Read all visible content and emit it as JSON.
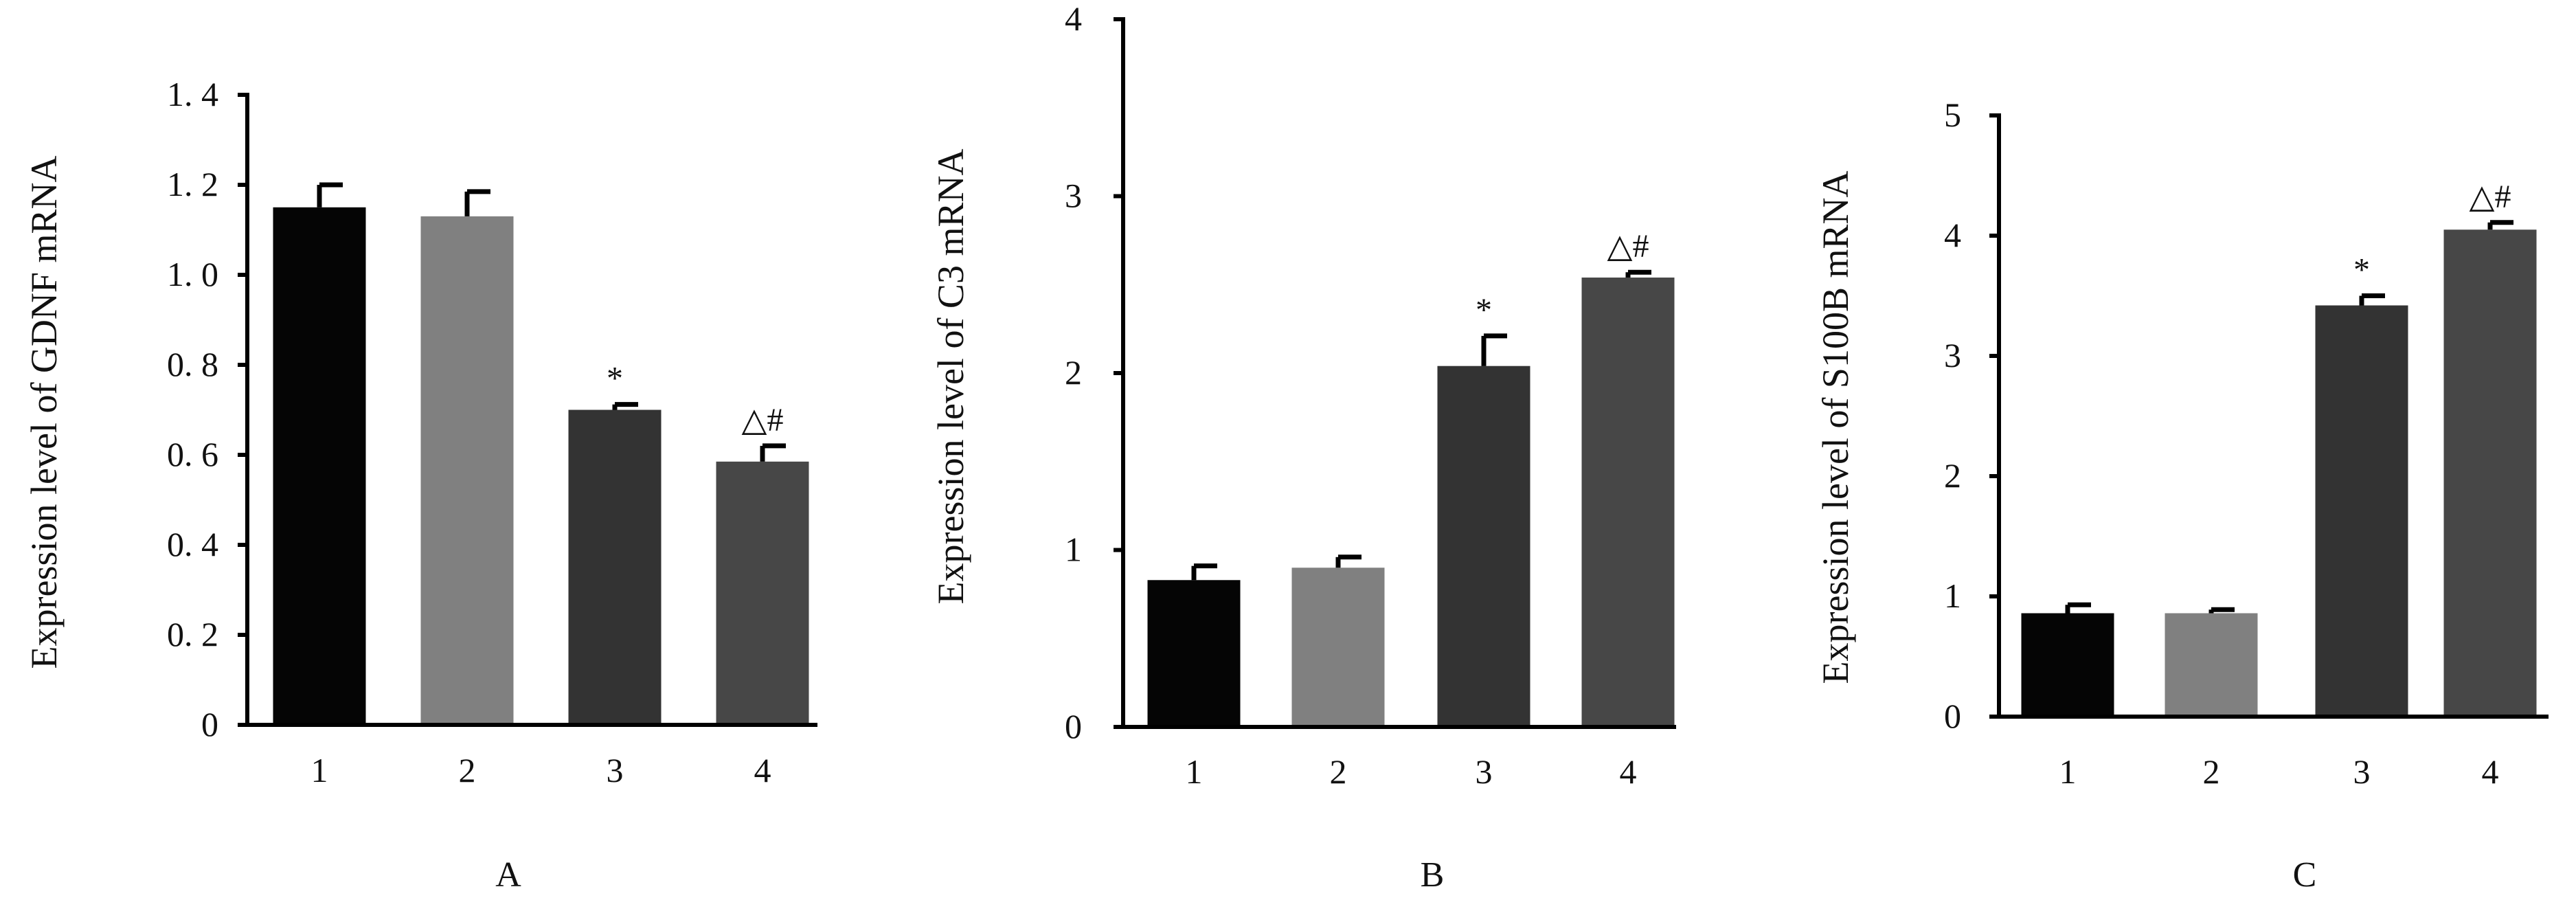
{
  "chart_data": [
    {
      "panel_label": "A",
      "type": "bar",
      "ylabel": "Expression level of GDNF mRNA",
      "categories": [
        "1",
        "2",
        "3",
        "4"
      ],
      "values": [
        1.15,
        1.13,
        0.7,
        0.585
      ],
      "errors": [
        0.05,
        0.055,
        0.012,
        0.035
      ],
      "annotations": [
        "",
        "",
        "*",
        "△#"
      ],
      "ylim": [
        0,
        1.4
      ],
      "yticks": [
        0,
        0.2,
        0.4,
        0.6,
        0.8,
        1.0,
        1.2,
        1.4
      ],
      "ytick_labels": [
        "0",
        "0. 2",
        "0. 4",
        "0. 6",
        "0. 8",
        "1. 0",
        "1. 2",
        "1. 4"
      ],
      "bar_colors": [
        "#050505",
        "#808080",
        "#333333",
        "#474747"
      ],
      "grid": false
    },
    {
      "panel_label": "B",
      "type": "bar",
      "ylabel": "Expression level of C3  mRNA",
      "categories": [
        "1",
        "2",
        "3",
        "4"
      ],
      "values": [
        0.83,
        0.9,
        2.04,
        2.54
      ],
      "errors": [
        0.08,
        0.06,
        0.17,
        0.03
      ],
      "annotations": [
        "",
        "",
        "*",
        "△#"
      ],
      "ylim": [
        0,
        4
      ],
      "yticks": [
        0,
        1,
        2,
        3,
        4
      ],
      "ytick_labels": [
        "0",
        "1",
        "2",
        "3",
        "4"
      ],
      "bar_colors": [
        "#050505",
        "#808080",
        "#333333",
        "#474747"
      ],
      "grid": false
    },
    {
      "panel_label": "C",
      "type": "bar",
      "ylabel": "Expression level of S100B mRNA",
      "categories": [
        "1",
        "2",
        "3",
        "4"
      ],
      "values": [
        0.86,
        0.86,
        3.42,
        4.05
      ],
      "errors": [
        0.07,
        0.03,
        0.08,
        0.06
      ],
      "annotations": [
        "",
        "",
        "*",
        "△#"
      ],
      "ylim": [
        0,
        5
      ],
      "yticks": [
        0,
        1,
        2,
        3,
        4,
        5
      ],
      "ytick_labels": [
        "0",
        "1",
        "2",
        "3",
        "4",
        "5"
      ],
      "bar_colors": [
        "#050505",
        "#808080",
        "#333333",
        "#474747"
      ],
      "grid": false
    }
  ]
}
